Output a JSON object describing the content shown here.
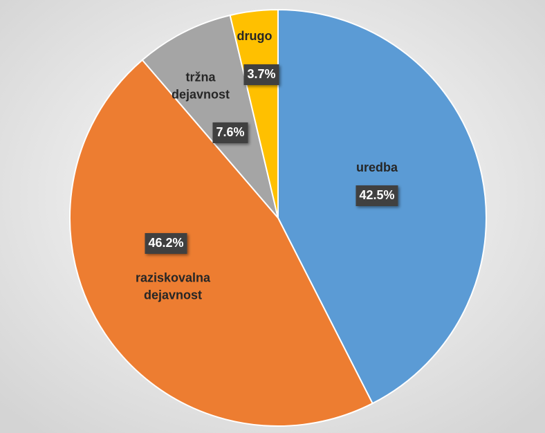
{
  "chart_data": {
    "type": "pie",
    "categories": [
      "uredba",
      "raziskovalna dejavnost",
      "tržna dejavnost",
      "drugo"
    ],
    "values": [
      42.5,
      46.2,
      7.6,
      3.7
    ],
    "value_labels": [
      "42.5%",
      "46.2%",
      "7.6%",
      "3.7%"
    ],
    "colors": [
      "#5b9bd5",
      "#ed7d31",
      "#a5a5a5",
      "#ffc000"
    ]
  }
}
